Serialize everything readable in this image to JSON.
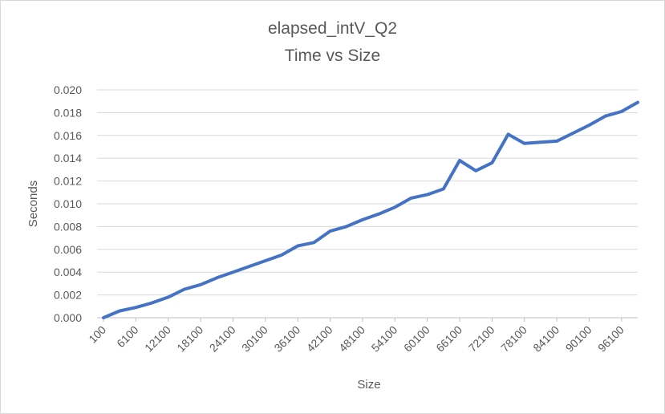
{
  "chart_data": {
    "type": "line",
    "title": "elapsed_intV_Q2",
    "subtitle": "Time vs Size",
    "xlabel": "Size",
    "ylabel": "Seconds",
    "ylim": [
      0,
      0.02
    ],
    "yticks": [
      "0.000",
      "0.002",
      "0.004",
      "0.006",
      "0.008",
      "0.010",
      "0.012",
      "0.014",
      "0.016",
      "0.018",
      "0.020"
    ],
    "xticks": [
      "100",
      "6100",
      "12100",
      "18100",
      "24100",
      "30100",
      "36100",
      "42100",
      "48100",
      "54100",
      "60100",
      "66100",
      "72100",
      "78100",
      "84100",
      "90100",
      "96100"
    ],
    "grid": true,
    "legend": "none",
    "series": [
      {
        "color": "#4472c4",
        "x": [
          100,
          3100,
          6100,
          9100,
          12100,
          15100,
          18100,
          21100,
          24100,
          27100,
          30100,
          33100,
          36100,
          39100,
          42100,
          45100,
          48100,
          51100,
          54100,
          57100,
          60100,
          63100,
          66100,
          69100,
          72100,
          75100,
          78100,
          81100,
          84100,
          87100,
          90100,
          93100,
          96100,
          99100
        ],
        "values": [
          0.0,
          0.0006,
          0.0009,
          0.0013,
          0.0018,
          0.0025,
          0.0029,
          0.0035,
          0.004,
          0.0045,
          0.005,
          0.0055,
          0.0063,
          0.0066,
          0.0076,
          0.008,
          0.0086,
          0.0091,
          0.0097,
          0.0105,
          0.0108,
          0.0113,
          0.0138,
          0.0129,
          0.0136,
          0.0161,
          0.0153,
          0.0154,
          0.0155,
          0.0162,
          0.0169,
          0.0177,
          0.0181,
          0.0189
        ]
      }
    ]
  }
}
